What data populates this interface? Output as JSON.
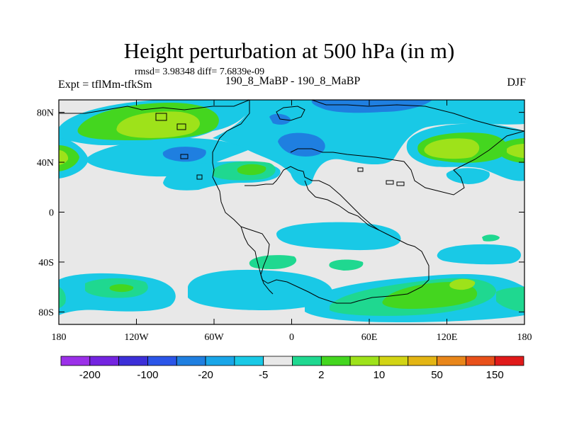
{
  "header": {
    "title": "Height perturbation at 500 hPa (in m)",
    "stats": "rmsd= 3.98348 diff= 7.6839e-09",
    "left_label": "Expt = tflMm-tfkSm",
    "center_label": "190_8_MaBP - 190_8_MaBP",
    "right_label": "DJF"
  },
  "axes": {
    "x_ticks": [
      {
        "value": -180,
        "label": "180"
      },
      {
        "value": -120,
        "label": "120W"
      },
      {
        "value": -60,
        "label": "60W"
      },
      {
        "value": 0,
        "label": "0"
      },
      {
        "value": 60,
        "label": "60E"
      },
      {
        "value": 120,
        "label": "120E"
      },
      {
        "value": 180,
        "label": "180"
      }
    ],
    "y_ticks": [
      {
        "value": 80,
        "label": "80N"
      },
      {
        "value": 40,
        "label": "40N"
      },
      {
        "value": 0,
        "label": "0"
      },
      {
        "value": -40,
        "label": "40S"
      },
      {
        "value": -80,
        "label": "80S"
      }
    ],
    "lon_range": [
      -180,
      180
    ],
    "lat_range": [
      -90,
      90
    ]
  },
  "colorbar": {
    "colors": [
      "#9b30e8",
      "#7424e0",
      "#3c2fd8",
      "#2b55e8",
      "#1f7fe0",
      "#19a6e8",
      "#19c9e6",
      "#e8e8e8",
      "#1fd890",
      "#44d61f",
      "#9ee21a",
      "#d2d414",
      "#e3b514",
      "#e8861a",
      "#e8501a",
      "#e01a1a"
    ],
    "labels": [
      {
        "after_box": 1,
        "text": "-200"
      },
      {
        "after_box": 3,
        "text": "-100"
      },
      {
        "after_box": 5,
        "text": "-20"
      },
      {
        "after_box": 7,
        "text": "-5"
      },
      {
        "after_box": 9,
        "text": "2"
      },
      {
        "after_box": 11,
        "text": "10"
      },
      {
        "after_box": 13,
        "text": "50"
      },
      {
        "after_box": 15,
        "text": "150"
      }
    ]
  }
}
